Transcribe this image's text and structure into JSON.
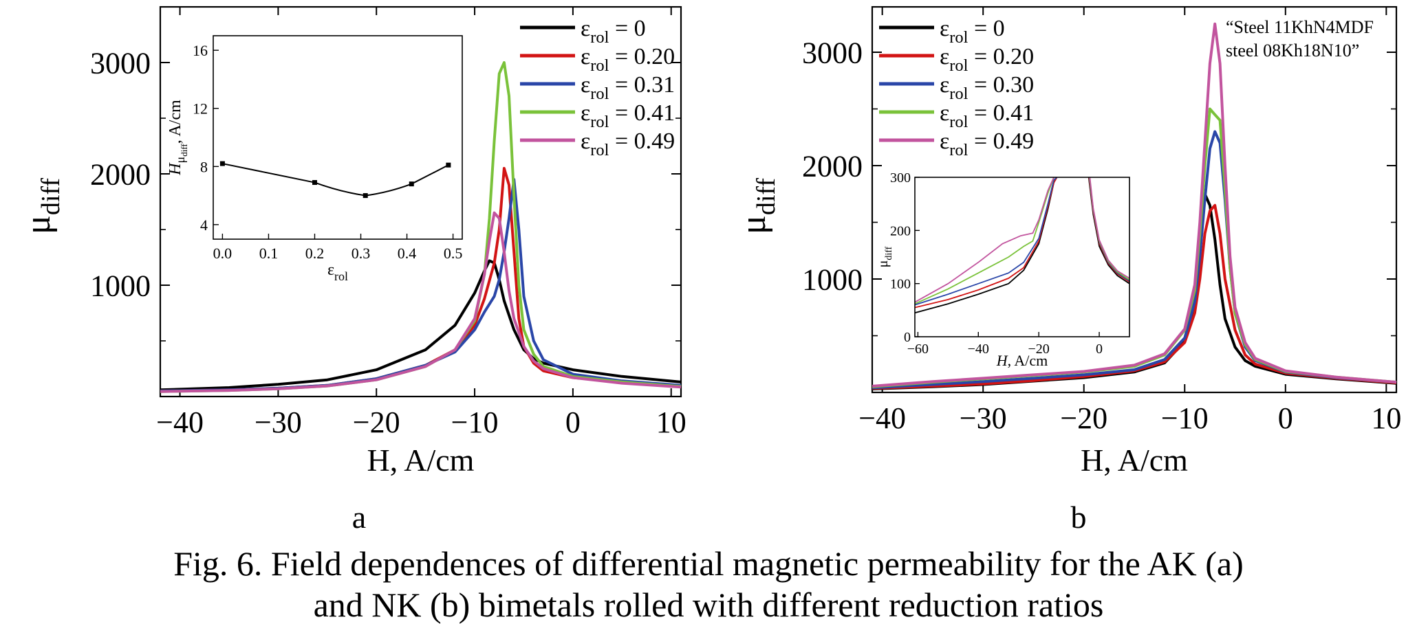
{
  "caption": {
    "line1": "Fig. 6. Field dependences of differential magnetic permeability for the AK (a)",
    "line2": "and NK (b) bimetals rolled with different reduction ratios"
  },
  "panel_labels": [
    "a",
    "b"
  ],
  "colors": {
    "eps0": "#000000",
    "eps020": "#d21414",
    "eps031": "#2a46a8",
    "eps041": "#7ac23a",
    "eps049": "#c2549e"
  },
  "chart_data": [
    {
      "type": "line",
      "panel": "a",
      "xlabel": "H, A/cm",
      "ylabel": "μdiff",
      "xlim": [
        -42,
        11
      ],
      "ylim": [
        0,
        3500
      ],
      "xticks": [
        "-40",
        "-30",
        "-20",
        "-10",
        "0",
        "10"
      ],
      "yticks": [
        "1000",
        "2000",
        "3000"
      ],
      "legend_position": "top-right",
      "series": [
        {
          "name": "εrol = 0",
          "color_key": "eps0",
          "x": [
            -42,
            -35,
            -30,
            -25,
            -20,
            -15,
            -12,
            -10,
            -9,
            -8.5,
            -8,
            -7.5,
            -7,
            -6,
            -5,
            -4,
            -3,
            0,
            5,
            11
          ],
          "y": [
            60,
            80,
            110,
            150,
            240,
            420,
            640,
            930,
            1130,
            1220,
            1200,
            1050,
            860,
            600,
            420,
            340,
            300,
            240,
            180,
            130
          ]
        },
        {
          "name": "εrol = 0.20",
          "color_key": "eps020",
          "x": [
            -42,
            -35,
            -30,
            -25,
            -20,
            -15,
            -12,
            -10,
            -9,
            -8,
            -7.5,
            -7,
            -6.5,
            -6,
            -5.5,
            -5,
            -4,
            -3,
            0,
            5,
            11
          ],
          "y": [
            50,
            60,
            75,
            100,
            160,
            280,
            420,
            640,
            880,
            1200,
            1500,
            2050,
            1900,
            1300,
            700,
            450,
            300,
            230,
            170,
            130,
            90
          ]
        },
        {
          "name": "εrol = 0.31",
          "color_key": "eps031",
          "x": [
            -42,
            -35,
            -30,
            -25,
            -20,
            -15,
            -12,
            -10,
            -9,
            -8,
            -7.5,
            -7,
            -6.5,
            -6,
            -5.5,
            -5,
            -4,
            -3,
            0,
            5,
            11
          ],
          "y": [
            50,
            60,
            75,
            100,
            160,
            280,
            400,
            600,
            760,
            900,
            1050,
            1300,
            1600,
            1950,
            1500,
            900,
            500,
            330,
            200,
            140,
            100
          ]
        },
        {
          "name": "εrol = 0.41",
          "color_key": "eps041",
          "x": [
            -42,
            -35,
            -30,
            -25,
            -20,
            -15,
            -12,
            -10,
            -9,
            -8.5,
            -8,
            -7.5,
            -7,
            -6.5,
            -6,
            -5.5,
            -5,
            -4,
            -3,
            0,
            5,
            11
          ],
          "y": [
            45,
            55,
            70,
            95,
            150,
            270,
            420,
            680,
            1100,
            1600,
            2300,
            2900,
            3000,
            2700,
            1800,
            1000,
            600,
            380,
            270,
            180,
            130,
            90
          ]
        },
        {
          "name": "εrol = 0.49",
          "color_key": "eps049",
          "x": [
            -42,
            -35,
            -30,
            -25,
            -20,
            -15,
            -12,
            -10,
            -9,
            -8.5,
            -8,
            -7.5,
            -7,
            -6.5,
            -6,
            -5,
            -4,
            -3,
            0,
            5,
            11
          ],
          "y": [
            45,
            55,
            70,
            95,
            150,
            270,
            420,
            700,
            1100,
            1400,
            1650,
            1600,
            1300,
            950,
            700,
            450,
            320,
            250,
            170,
            120,
            85
          ]
        }
      ],
      "inset": {
        "type": "line",
        "xlabel": "εrol",
        "ylabel": "Hμdiff, A/cm",
        "xlim": [
          -0.02,
          0.52
        ],
        "ylim": [
          3,
          17
        ],
        "xticks": [
          "0.0",
          "0.1",
          "0.2",
          "0.3",
          "0.4",
          "0.5"
        ],
        "yticks": [
          "4",
          "8",
          "12",
          "16"
        ],
        "x": [
          0,
          0.2,
          0.31,
          0.41,
          0.49
        ],
        "y": [
          8.2,
          6.9,
          6.0,
          6.8,
          8.1
        ]
      }
    },
    {
      "type": "line",
      "panel": "b",
      "xlabel": "H, A/cm",
      "ylabel": "μdiff",
      "xlim": [
        -41,
        11
      ],
      "ylim": [
        0,
        3400
      ],
      "xticks": [
        "-40",
        "-30",
        "-20",
        "-10",
        "0",
        "10"
      ],
      "yticks": [
        "1000",
        "2000",
        "3000"
      ],
      "legend_position": "top-left",
      "annotation": [
        "“Steel 11KhN4MDF",
        "steel 08Kh18N10”"
      ],
      "series": [
        {
          "name": "εrol = 0",
          "color_key": "eps0",
          "x": [
            -41,
            -35,
            -30,
            -25,
            -20,
            -15,
            -12,
            -10,
            -9,
            -8.5,
            -8,
            -7.5,
            -7,
            -6.5,
            -6,
            -5,
            -4,
            -3,
            0,
            5,
            11
          ],
          "y": [
            30,
            50,
            70,
            100,
            130,
            180,
            260,
            450,
            800,
            1300,
            1750,
            1650,
            1350,
            950,
            650,
            400,
            280,
            230,
            160,
            120,
            80
          ]
        },
        {
          "name": "εrol = 0.20",
          "color_key": "eps020",
          "x": [
            -41,
            -35,
            -30,
            -25,
            -20,
            -15,
            -12,
            -10,
            -9,
            -8.5,
            -8,
            -7.5,
            -7,
            -6.5,
            -6,
            -5,
            -4,
            -3,
            0,
            5,
            11
          ],
          "y": [
            35,
            55,
            75,
            105,
            140,
            190,
            270,
            440,
            700,
            1000,
            1400,
            1600,
            1650,
            1400,
            1000,
            550,
            330,
            250,
            170,
            125,
            85
          ]
        },
        {
          "name": "εrol = 0.30",
          "color_key": "eps031",
          "x": [
            -41,
            -35,
            -30,
            -25,
            -20,
            -15,
            -12,
            -10,
            -9,
            -8.5,
            -8,
            -7.5,
            -7,
            -6.5,
            -6,
            -5.5,
            -5,
            -4,
            -3,
            0,
            5,
            11
          ],
          "y": [
            40,
            70,
            95,
            125,
            155,
            200,
            290,
            480,
            800,
            1200,
            1700,
            2150,
            2300,
            2200,
            1700,
            1100,
            700,
            400,
            280,
            180,
            130,
            90
          ]
        },
        {
          "name": "εrol = 0.41",
          "color_key": "eps041",
          "x": [
            -41,
            -35,
            -30,
            -25,
            -20,
            -15,
            -12,
            -10,
            -9,
            -8.5,
            -8,
            -7.5,
            -7,
            -6.5,
            -6,
            -5.5,
            -5,
            -4,
            -3,
            0,
            5,
            11
          ],
          "y": [
            50,
            90,
            120,
            150,
            180,
            230,
            330,
            550,
            900,
            1400,
            2000,
            2500,
            2450,
            2400,
            1800,
            1100,
            700,
            420,
            290,
            185,
            135,
            90
          ]
        },
        {
          "name": "εrol = 0.49",
          "color_key": "eps049",
          "x": [
            -41,
            -35,
            -30,
            -25,
            -20,
            -15,
            -12,
            -10,
            -9,
            -8.5,
            -8,
            -7.5,
            -7,
            -6.5,
            -6,
            -5.5,
            -5,
            -4,
            -3,
            0,
            5,
            11
          ],
          "y": [
            55,
            95,
            125,
            155,
            185,
            240,
            340,
            560,
            950,
            1500,
            2200,
            2900,
            3250,
            2900,
            2000,
            1200,
            750,
            440,
            300,
            190,
            135,
            90
          ]
        }
      ],
      "inset": {
        "type": "line",
        "xlabel": "H, A/cm",
        "ylabel": "μdiff",
        "xlim": [
          -61,
          10
        ],
        "ylim": [
          0,
          300
        ],
        "xticks": [
          "-60",
          "-40",
          "-20",
          "0"
        ],
        "yticks": [
          "0",
          "100",
          "200",
          "300"
        ],
        "series": [
          {
            "color_key": "eps0",
            "x": [
              -61,
              -50,
              -40,
              -30,
              -25,
              -20,
              -17,
              -15,
              -14
            ],
            "y": [
              45,
              62,
              80,
              100,
              125,
              175,
              240,
              290,
              300
            ]
          },
          {
            "color_key": "eps020",
            "x": [
              -61,
              -50,
              -40,
              -30,
              -25,
              -20,
              -17,
              -15,
              -14
            ],
            "y": [
              55,
              70,
              88,
              110,
              130,
              180,
              245,
              290,
              300
            ]
          },
          {
            "color_key": "eps031",
            "x": [
              -61,
              -50,
              -40,
              -30,
              -25,
              -20,
              -17,
              -15,
              -14
            ],
            "y": [
              60,
              80,
              100,
              120,
              140,
              185,
              250,
              295,
              300
            ]
          },
          {
            "color_key": "eps041",
            "x": [
              -61,
              -50,
              -40,
              -30,
              -25,
              -22,
              -20,
              -17,
              -15
            ],
            "y": [
              62,
              90,
              120,
              150,
              170,
              180,
              215,
              270,
              300
            ]
          },
          {
            "color_key": "eps049",
            "x": [
              -61,
              -50,
              -40,
              -32,
              -26,
              -22,
              -20,
              -17,
              -15
            ],
            "y": [
              65,
              100,
              140,
              175,
              190,
              195,
              220,
              275,
              300
            ]
          },
          {
            "color_key": "eps0",
            "x": [
              -3.5,
              -2,
              0,
              3,
              6,
              10
            ],
            "y": [
              300,
              230,
              170,
              135,
              115,
              100
            ]
          },
          {
            "color_key": "eps020",
            "x": [
              -3.4,
              -2,
              0,
              3,
              6,
              10
            ],
            "y": [
              300,
              235,
              175,
              138,
              118,
              103
            ]
          },
          {
            "color_key": "eps031",
            "x": [
              -3.3,
              -2,
              0,
              3,
              6,
              10
            ],
            "y": [
              300,
              238,
              178,
              140,
              120,
              105
            ]
          },
          {
            "color_key": "eps041",
            "x": [
              -3.2,
              -2,
              0,
              3,
              6,
              10
            ],
            "y": [
              300,
              240,
              180,
              142,
              122,
              107
            ]
          },
          {
            "color_key": "eps049",
            "x": [
              -3.1,
              -2,
              0,
              3,
              6,
              10
            ],
            "y": [
              300,
              242,
              182,
              144,
              124,
              110
            ]
          }
        ]
      }
    }
  ]
}
